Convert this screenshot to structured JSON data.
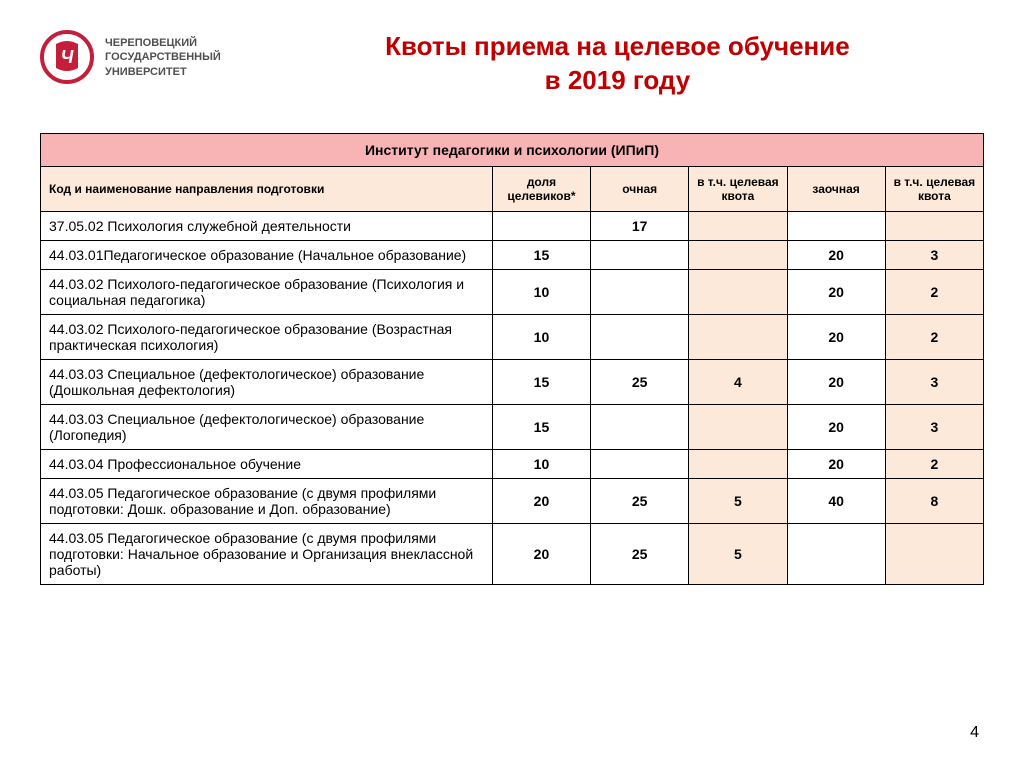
{
  "logo": {
    "line1": "ЧЕРЕПОВЕЦКИЙ",
    "line2": "ГОСУДАРСТВЕННЫЙ",
    "line3": "УНИВЕРСИТЕТ",
    "accent_color": "#c41e3a",
    "text_color": "#505050"
  },
  "title": {
    "line1": "Квоты приема на целевое обучение",
    "line2": "в 2019 году",
    "color": "#c00000"
  },
  "table": {
    "institute_header": "Институт педагогики и психологии (ИПиП)",
    "institute_bg": "#f8b4b4",
    "columns": {
      "name": "Код и наименование направления подготовки",
      "share": "доля целевиков*",
      "full_time": "очная",
      "full_time_quota": "в т.ч. целевая квота",
      "part_time": "заочная",
      "part_time_quota": "в т.ч. целевая квота"
    },
    "header_bg": "#fde9d9",
    "quota_bg": "#fde9d9",
    "rows": [
      {
        "name": "37.05.02 Психология служебной деятельности",
        "share": "",
        "full_time": "17",
        "ft_quota": "",
        "part_time": "",
        "pt_quota": ""
      },
      {
        "name": "44.03.01Педагогическое образование (Начальное образование)",
        "share": "15",
        "full_time": "",
        "ft_quota": "",
        "part_time": "20",
        "pt_quota": "3"
      },
      {
        "name": "44.03.02 Психолого-педагогическое образование (Психология и социальная педагогика)",
        "share": "10",
        "full_time": "",
        "ft_quota": "",
        "part_time": "20",
        "pt_quota": "2"
      },
      {
        "name": "44.03.02 Психолого-педагогическое образование (Возрастная практическая психология)",
        "share": "10",
        "full_time": "",
        "ft_quota": "",
        "part_time": "20",
        "pt_quota": "2"
      },
      {
        "name": "44.03.03 Специальное (дефектологическое) образование (Дошкольная дефектология)",
        "share": "15",
        "full_time": "25",
        "ft_quota": "4",
        "part_time": "20",
        "pt_quota": "3"
      },
      {
        "name": "44.03.03 Специальное (дефектологическое) образование (Логопедия)",
        "share": "15",
        "full_time": "",
        "ft_quota": "",
        "part_time": "20",
        "pt_quota": "3"
      },
      {
        "name": "44.03.04 Профессиональное обучение",
        "share": "10",
        "full_time": "",
        "ft_quota": "",
        "part_time": "20",
        "pt_quota": "2"
      },
      {
        "name": "44.03.05 Педагогическое образование (с двумя профилями подготовки: Дошк. образование и Доп. образование)",
        "share": "20",
        "full_time": "25",
        "ft_quota": "5",
        "part_time": "40",
        "pt_quota": "8"
      },
      {
        "name": "44.03.05 Педагогическое образование (с двумя профилями подготовки: Начальное образование и Организация внеклассной работы)",
        "share": "20",
        "full_time": "25",
        "ft_quota": "5",
        "part_time": "",
        "pt_quota": ""
      }
    ],
    "col_widths": {
      "name": "46%",
      "share": "10%",
      "full_time": "10%",
      "ft_quota": "10%",
      "part_time": "10%",
      "pt_quota": "10%"
    }
  },
  "page_number": "4"
}
